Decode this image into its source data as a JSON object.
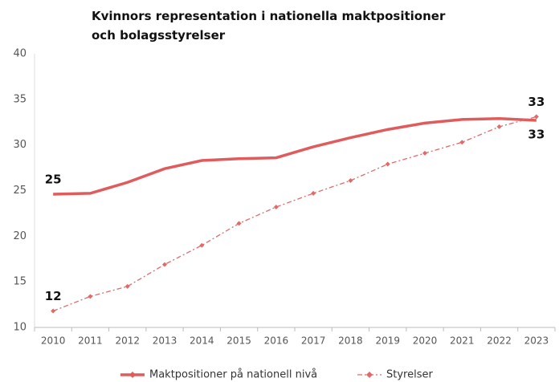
{
  "chart_data": {
    "type": "line",
    "title": "Kvinnors representation i nationella maktpositioner och bolagsstyrelser",
    "categories": [
      "2010",
      "2011",
      "2012",
      "2013",
      "2014",
      "2015",
      "2016",
      "2017",
      "2018",
      "2019",
      "2020",
      "2021",
      "2022",
      "2023"
    ],
    "series": [
      {
        "name": "Maktpositioner på nationell nivå",
        "color": "#e05c5c",
        "line_style": "solid",
        "markers": false,
        "values": [
          24.6,
          24.7,
          25.9,
          27.4,
          28.3,
          28.5,
          28.6,
          29.8,
          30.8,
          31.7,
          32.4,
          32.8,
          32.9,
          32.7
        ],
        "value_labels": [
          "25",
          null,
          null,
          null,
          null,
          null,
          null,
          null,
          null,
          null,
          null,
          null,
          null,
          "33"
        ]
      },
      {
        "name": "Styrelser",
        "color": "#e06a6a",
        "line_style": "dashdot",
        "markers": true,
        "values": [
          11.8,
          13.4,
          14.5,
          16.9,
          19.0,
          21.4,
          23.2,
          24.7,
          26.1,
          27.9,
          29.1,
          30.3,
          32.0,
          33.1
        ],
        "value_labels": [
          "12",
          null,
          null,
          null,
          null,
          null,
          null,
          null,
          null,
          null,
          null,
          null,
          null,
          "33"
        ]
      }
    ],
    "ylim": [
      10,
      40
    ],
    "yticks": [
      10,
      15,
      20,
      25,
      30,
      35,
      40
    ],
    "grid": false
  }
}
